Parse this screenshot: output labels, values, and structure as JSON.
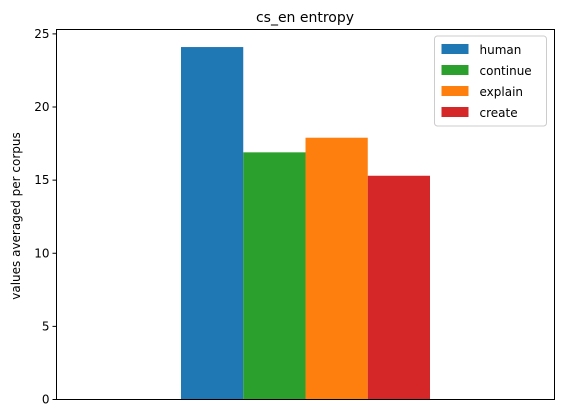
{
  "chart_data": {
    "type": "bar",
    "title": "cs_en entropy",
    "xlabel": "",
    "ylabel": "values averaged per corpus",
    "ylim": [
      0,
      25.3
    ],
    "yticks": [
      0,
      5,
      10,
      15,
      20,
      25
    ],
    "grid": false,
    "legend_position": "top-right",
    "series": [
      {
        "name": "human",
        "value": 24.1,
        "color": "#1f77b4"
      },
      {
        "name": "continue",
        "value": 16.9,
        "color": "#2ca02c"
      },
      {
        "name": "explain",
        "value": 17.9,
        "color": "#ff7f0e"
      },
      {
        "name": "create",
        "value": 15.3,
        "color": "#d62728"
      }
    ]
  }
}
